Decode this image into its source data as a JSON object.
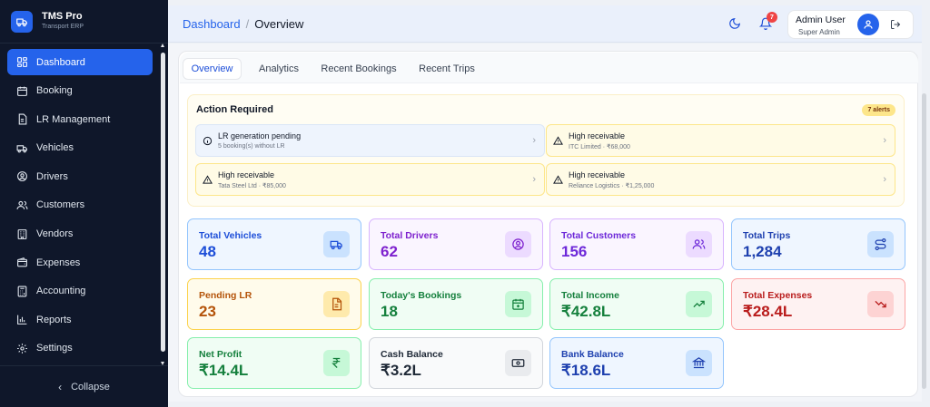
{
  "brand": {
    "title": "TMS Pro",
    "subtitle": "Transport ERP",
    "color": "#2563eb"
  },
  "sidebar": {
    "items": [
      {
        "label": "Dashboard",
        "icon": "dashboard-icon",
        "active": true
      },
      {
        "label": "Booking",
        "icon": "calendar-icon"
      },
      {
        "label": "LR Management",
        "icon": "document-icon"
      },
      {
        "label": "Vehicles",
        "icon": "truck-icon"
      },
      {
        "label": "Drivers",
        "icon": "user-circle-icon"
      },
      {
        "label": "Customers",
        "icon": "users-icon"
      },
      {
        "label": "Vendors",
        "icon": "building-icon"
      },
      {
        "label": "Expenses",
        "icon": "wallet-icon"
      },
      {
        "label": "Accounting",
        "icon": "calculator-icon"
      },
      {
        "label": "Reports",
        "icon": "bar-chart-icon"
      },
      {
        "label": "Settings",
        "icon": "gear-icon"
      }
    ],
    "collapse_label": "Collapse"
  },
  "header": {
    "breadcrumb_root": "Dashboard",
    "breadcrumb_separator": "/",
    "breadcrumb_current": "Overview",
    "notification_count": "7",
    "user_name": "Admin User",
    "user_role": "Super Admin"
  },
  "tabs": [
    "Overview",
    "Analytics",
    "Recent Bookings",
    "Recent Trips"
  ],
  "action_required": {
    "title": "Action Required",
    "badge": "7 alerts",
    "alerts": [
      {
        "title": "LR generation pending",
        "sub": "5 booking(s) without LR",
        "kind": "info"
      },
      {
        "title": "High receivable",
        "sub": "ITC Limited · ₹68,000",
        "kind": "warning"
      },
      {
        "title": "High receivable",
        "sub": "Tata Steel Ltd · ₹85,000",
        "kind": "warning"
      },
      {
        "title": "High receivable",
        "sub": "Reliance Logistics · ₹1,25,000",
        "kind": "warning"
      }
    ]
  },
  "stats": [
    {
      "label": "Total Vehicles",
      "value": "48",
      "icon": "truck-icon",
      "color": "#1d4ed8",
      "bg": "#eff6ff",
      "border": "#93c5fd"
    },
    {
      "label": "Total Drivers",
      "value": "62",
      "icon": "user-circle-icon",
      "color": "#7e22ce",
      "bg": "#faf5ff",
      "border": "#d8b4fe"
    },
    {
      "label": "Total Customers",
      "value": "156",
      "icon": "users-icon",
      "color": "#6d28d9",
      "bg": "#faf5ff",
      "border": "#d8b4fe"
    },
    {
      "label": "Total Trips",
      "value": "1,284",
      "icon": "route-icon",
      "color": "#1e40af",
      "bg": "#eff6ff",
      "border": "#93c5fd"
    },
    {
      "label": "Pending LR",
      "value": "23",
      "icon": "file-text-icon",
      "color": "#b45309",
      "bg": "#fffbeb",
      "border": "#fcd34d"
    },
    {
      "label": "Today's Bookings",
      "value": "18",
      "icon": "calendar-plus-icon",
      "color": "#15803d",
      "bg": "#f0fdf4",
      "border": "#86efac"
    },
    {
      "label": "Total Income",
      "value": "₹42.8L",
      "icon": "trending-up-icon",
      "color": "#15803d",
      "bg": "#f0fdf4",
      "border": "#86efac"
    },
    {
      "label": "Total Expenses",
      "value": "₹28.4L",
      "icon": "trending-down-icon",
      "color": "#b91c1c",
      "bg": "#fef2f2",
      "border": "#fca5a5"
    },
    {
      "label": "Net Profit",
      "value": "₹14.4L",
      "icon": "rupee-icon",
      "color": "#15803d",
      "bg": "#f0fdf4",
      "border": "#86efac"
    },
    {
      "label": "Cash Balance",
      "value": "₹3.2L",
      "icon": "banknote-icon",
      "color": "#1f2937",
      "bg": "#f9fafb",
      "border": "#d1d5db"
    },
    {
      "label": "Bank Balance",
      "value": "₹18.6L",
      "icon": "bank-icon",
      "color": "#1e40af",
      "bg": "#eff6ff",
      "border": "#93c5fd"
    }
  ]
}
